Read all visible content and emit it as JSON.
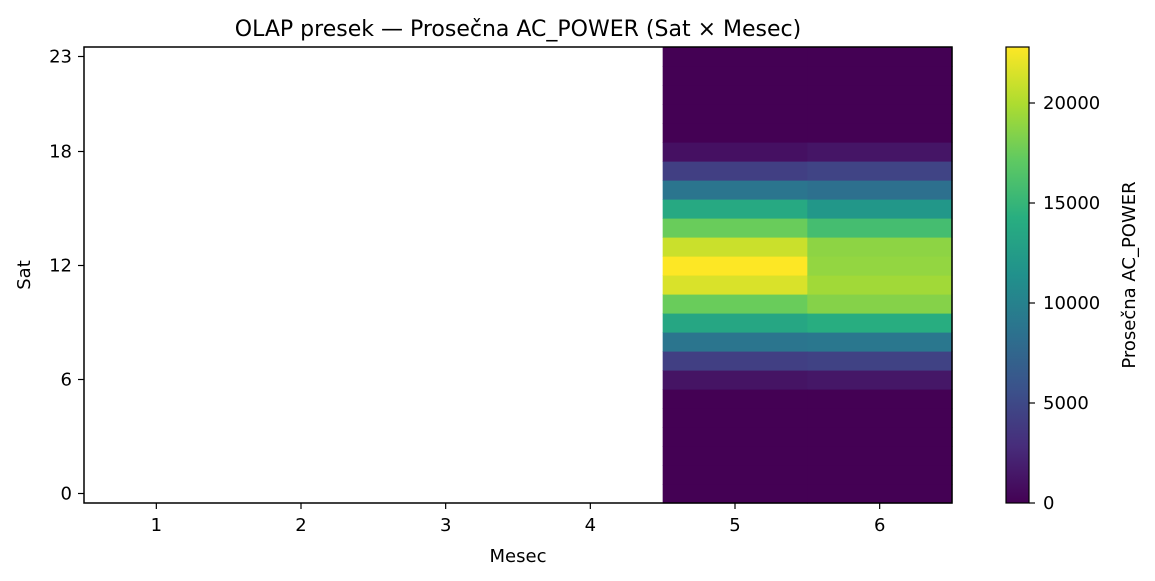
{
  "chart_data": {
    "type": "heatmap",
    "title": "OLAP presek — Prosečna AC_POWER (Sat × Mesec)",
    "xlabel": "Mesec",
    "ylabel": "Sat",
    "colorbar_label": "Prosečna AC_POWER",
    "colormap": "viridis",
    "x_categories": [
      1,
      2,
      3,
      4,
      5,
      6
    ],
    "y_categories": [
      0,
      1,
      2,
      3,
      4,
      5,
      6,
      7,
      8,
      9,
      10,
      11,
      12,
      13,
      14,
      15,
      16,
      17,
      18,
      19,
      20,
      21,
      22,
      23
    ],
    "x_ticks": [
      "1",
      "2",
      "3",
      "4",
      "5",
      "6"
    ],
    "y_ticks": [
      "0",
      "6",
      "12",
      "18",
      "23"
    ],
    "y_tick_values": [
      0,
      6,
      12,
      18,
      23
    ],
    "colorbar_ticks": [
      "0",
      "5000",
      "10000",
      "15000",
      "20000"
    ],
    "colorbar_tick_values": [
      0,
      5000,
      10000,
      15000,
      20000
    ],
    "color_range": [
      0,
      22800
    ],
    "grid": false,
    "missing_months": [
      1,
      2,
      3,
      4
    ],
    "series": [
      {
        "month": 5,
        "values": [
          0,
          0,
          0,
          0,
          0,
          0,
          1200,
          4200,
          8800,
          13500,
          17500,
          21500,
          22800,
          21000,
          17500,
          13800,
          8800,
          4200,
          1000,
          0,
          0,
          0,
          0,
          0
        ]
      },
      {
        "month": 6,
        "values": [
          0,
          0,
          0,
          0,
          0,
          0,
          1400,
          4500,
          9000,
          14200,
          18500,
          19500,
          19000,
          18800,
          15800,
          12000,
          8400,
          4600,
          1300,
          0,
          0,
          0,
          0,
          0
        ]
      }
    ]
  }
}
